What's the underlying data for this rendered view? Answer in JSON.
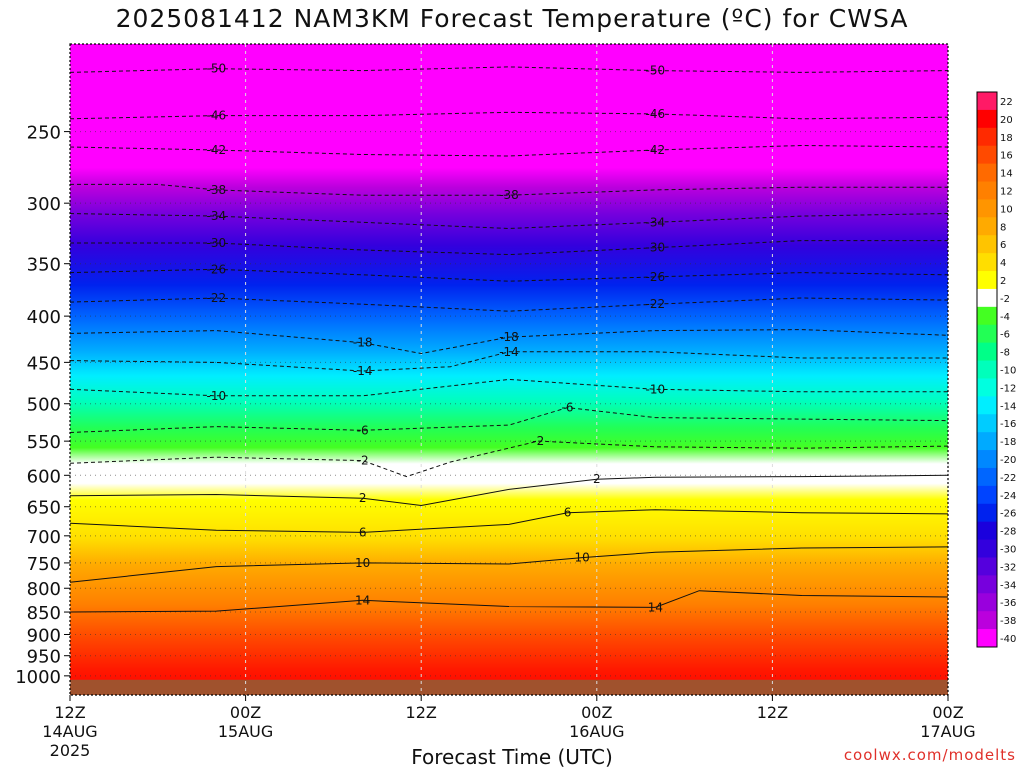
{
  "title": "2025081412 NAM3KM Forecast Temperature (ºC) for CWSA",
  "xlabel": "Forecast Time (UTC)",
  "credit": "coolwx.com/modelts",
  "chart_data": {
    "type": "heatmap",
    "title": "2025081412 NAM3KM Forecast Temperature (ºC) for CWSA",
    "xlabel": "Forecast Time (UTC)",
    "ylabel": "",
    "x_range_hours": [
      0,
      60
    ],
    "y_axis": {
      "scale": "log",
      "reversed": true,
      "ylim": [
        1050,
        200
      ]
    },
    "x_ticks": [
      {
        "hour": 0,
        "lines": [
          "12Z",
          "14AUG",
          "2025"
        ]
      },
      {
        "hour": 12,
        "lines": [
          "00Z",
          "15AUG"
        ]
      },
      {
        "hour": 24,
        "lines": [
          "12Z"
        ]
      },
      {
        "hour": 36,
        "lines": [
          "00Z",
          "16AUG"
        ]
      },
      {
        "hour": 48,
        "lines": [
          "12Z"
        ]
      },
      {
        "hour": 60,
        "lines": [
          "00Z",
          "17AUG"
        ]
      }
    ],
    "y_ticks": [
      250,
      300,
      350,
      400,
      450,
      500,
      550,
      600,
      650,
      700,
      750,
      800,
      850,
      900,
      950,
      1000
    ],
    "colorbar": {
      "labels": [
        "22",
        "20",
        "18",
        "16",
        "14",
        "12",
        "10",
        "8",
        "6",
        "4",
        "2",
        "-2",
        "-4",
        "-6",
        "-8",
        "-10",
        "-12",
        "-14",
        "-16",
        "-18",
        "-20",
        "-22",
        "-24",
        "-26",
        "-28",
        "-30",
        "-32",
        "-34",
        "-36",
        "-38",
        "-40"
      ],
      "colors": [
        "#ff1a66",
        "#ff0000",
        "#ff2a00",
        "#ff4a00",
        "#ff6a00",
        "#ff8000",
        "#ff9500",
        "#ffaa00",
        "#ffc400",
        "#ffde00",
        "#ffff00",
        "#ffffff",
        "#44ff22",
        "#22ff55",
        "#00ff88",
        "#00ffbb",
        "#00ffe0",
        "#00eeff",
        "#00ccff",
        "#00aaff",
        "#0088ff",
        "#0066ff",
        "#0044ff",
        "#0022ee",
        "#1a00dd",
        "#3300dd",
        "#5500dd",
        "#7700dd",
        "#9900dd",
        "#bb00dd",
        "#ff00ff"
      ]
    },
    "series": [
      {
        "name": "-50",
        "values": [
          [
            0,
            215
          ],
          [
            10,
            213
          ],
          [
            20,
            214
          ],
          [
            30,
            212
          ],
          [
            40,
            214
          ],
          [
            50,
            215
          ],
          [
            60,
            214
          ]
        ]
      },
      {
        "name": "-46",
        "values": [
          [
            0,
            242
          ],
          [
            10,
            240
          ],
          [
            20,
            240
          ],
          [
            30,
            238
          ],
          [
            40,
            239
          ],
          [
            50,
            242
          ],
          [
            60,
            241
          ]
        ]
      },
      {
        "name": "-42",
        "values": [
          [
            0,
            260
          ],
          [
            10,
            262
          ],
          [
            20,
            265
          ],
          [
            30,
            266
          ],
          [
            40,
            262
          ],
          [
            50,
            259
          ],
          [
            60,
            260
          ]
        ]
      },
      {
        "name": "-38",
        "values": [
          [
            0,
            286
          ],
          [
            6,
            286
          ],
          [
            10,
            290
          ],
          [
            20,
            294
          ],
          [
            30,
            294
          ],
          [
            40,
            290
          ],
          [
            50,
            288
          ],
          [
            60,
            288
          ]
        ]
      },
      {
        "name": "-34",
        "values": [
          [
            0,
            308
          ],
          [
            10,
            310
          ],
          [
            20,
            315
          ],
          [
            30,
            320
          ],
          [
            40,
            315
          ],
          [
            50,
            310
          ],
          [
            60,
            308
          ]
        ]
      },
      {
        "name": "-30",
        "values": [
          [
            0,
            332
          ],
          [
            10,
            332
          ],
          [
            20,
            338
          ],
          [
            30,
            342
          ],
          [
            40,
            336
          ],
          [
            50,
            330
          ],
          [
            60,
            330
          ]
        ]
      },
      {
        "name": "-26",
        "values": [
          [
            0,
            358
          ],
          [
            10,
            355
          ],
          [
            20,
            360
          ],
          [
            30,
            366
          ],
          [
            40,
            362
          ],
          [
            50,
            358
          ],
          [
            60,
            360
          ]
        ]
      },
      {
        "name": "-22",
        "values": [
          [
            0,
            386
          ],
          [
            10,
            382
          ],
          [
            20,
            388
          ],
          [
            30,
            395
          ],
          [
            40,
            388
          ],
          [
            50,
            382
          ],
          [
            60,
            384
          ]
        ]
      },
      {
        "name": "-18",
        "values": [
          [
            0,
            418
          ],
          [
            10,
            415
          ],
          [
            20,
            428
          ],
          [
            24,
            440
          ],
          [
            30,
            422
          ],
          [
            40,
            415
          ],
          [
            50,
            414
          ],
          [
            60,
            420
          ]
        ]
      },
      {
        "name": "-14",
        "values": [
          [
            0,
            448
          ],
          [
            10,
            450
          ],
          [
            20,
            460
          ],
          [
            26,
            455
          ],
          [
            30,
            438
          ],
          [
            40,
            438
          ],
          [
            50,
            445
          ],
          [
            60,
            445
          ]
        ]
      },
      {
        "name": "-10",
        "values": [
          [
            0,
            482
          ],
          [
            10,
            490
          ],
          [
            20,
            490
          ],
          [
            30,
            470
          ],
          [
            40,
            482
          ],
          [
            50,
            485
          ],
          [
            60,
            485
          ]
        ]
      },
      {
        "name": "-6",
        "values": [
          [
            0,
            538
          ],
          [
            10,
            530
          ],
          [
            20,
            535
          ],
          [
            30,
            528
          ],
          [
            34,
            505
          ],
          [
            40,
            518
          ],
          [
            50,
            520
          ],
          [
            60,
            522
          ]
        ]
      },
      {
        "name": "-2",
        "values": [
          [
            0,
            582
          ],
          [
            10,
            573
          ],
          [
            20,
            578
          ],
          [
            23,
            602
          ],
          [
            26,
            580
          ],
          [
            32,
            550
          ],
          [
            40,
            558
          ],
          [
            50,
            560
          ],
          [
            60,
            557
          ]
        ]
      },
      {
        "name": "2",
        "values": [
          [
            0,
            632
          ],
          [
            10,
            630
          ],
          [
            20,
            636
          ],
          [
            24,
            648
          ],
          [
            30,
            622
          ],
          [
            36,
            606
          ],
          [
            40,
            603
          ],
          [
            50,
            602
          ],
          [
            60,
            600
          ]
        ]
      },
      {
        "name": "6",
        "values": [
          [
            0,
            678
          ],
          [
            10,
            690
          ],
          [
            20,
            694
          ],
          [
            30,
            680
          ],
          [
            34,
            660
          ],
          [
            40,
            655
          ],
          [
            50,
            660
          ],
          [
            60,
            662
          ]
        ]
      },
      {
        "name": "10",
        "values": [
          [
            0,
            788
          ],
          [
            10,
            757
          ],
          [
            20,
            750
          ],
          [
            30,
            752
          ],
          [
            35,
            740
          ],
          [
            40,
            730
          ],
          [
            50,
            722
          ],
          [
            60,
            720
          ]
        ]
      },
      {
        "name": "14",
        "values": [
          [
            0,
            850
          ],
          [
            10,
            848
          ],
          [
            20,
            825
          ],
          [
            30,
            838
          ],
          [
            40,
            840
          ],
          [
            43,
            805
          ],
          [
            50,
            815
          ],
          [
            60,
            818
          ]
        ]
      }
    ]
  }
}
